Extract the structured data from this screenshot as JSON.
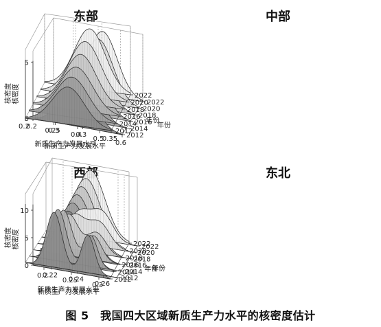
{
  "figure_caption": "图 5　我国四大区域新质生产力水平的核密度估计",
  "chart_data": [
    {
      "type": "kde-3d-surface",
      "title": "东部",
      "xlabel": "新质生产力发展水平",
      "ylabel": "年份",
      "zlabel": "核密度",
      "x_ticks": [
        "0.2",
        "0.3",
        "0.4",
        "0.5",
        "0.6"
      ],
      "xlim": [
        0.2,
        0.6
      ],
      "y_ticks": [
        "2012",
        "2014",
        "2016",
        "2018",
        "2020",
        "2022"
      ],
      "ylim": [
        2012,
        2022
      ],
      "z_ticks": [
        "0",
        "5"
      ],
      "zlim": [
        0,
        6
      ],
      "series": [
        {
          "year": 2012,
          "peaks": [
            {
              "mean": 0.4,
              "sd": 0.065,
              "height": 5.2
            }
          ]
        },
        {
          "year": 2014,
          "peaks": [
            {
              "mean": 0.4,
              "sd": 0.065,
              "height": 5.2
            }
          ]
        },
        {
          "year": 2016,
          "peaks": [
            {
              "mean": 0.41,
              "sd": 0.065,
              "height": 5.3
            }
          ]
        },
        {
          "year": 2018,
          "peaks": [
            {
              "mean": 0.41,
              "sd": 0.065,
              "height": 5.4
            }
          ]
        },
        {
          "year": 2020,
          "peaks": [
            {
              "mean": 0.42,
              "sd": 0.065,
              "height": 5.5
            }
          ]
        },
        {
          "year": 2022,
          "peaks": [
            {
              "mean": 0.42,
              "sd": 0.065,
              "height": 5.6
            }
          ]
        }
      ]
    },
    {
      "type": "kde-3d-surface",
      "title": "中部",
      "xlabel": "新质生产力发展水平",
      "ylabel": "年份",
      "zlabel": "核密度",
      "x_ticks": [
        "0.2",
        "0.25",
        "0.3",
        "0.35"
      ],
      "xlim": [
        0.2,
        0.35
      ],
      "y_ticks": [
        "2012",
        "2014",
        "2016",
        "2018",
        "2020",
        "2022"
      ],
      "ylim": [
        2012,
        2022
      ],
      "z_ticks": [],
      "zlim": [
        0,
        12
      ],
      "series": [
        {
          "year": 2012,
          "peaks": [
            {
              "mean": 0.275,
              "sd": 0.028,
              "height": 6.5
            }
          ]
        },
        {
          "year": 2014,
          "peaks": [
            {
              "mean": 0.275,
              "sd": 0.028,
              "height": 7.0
            }
          ]
        },
        {
          "year": 2016,
          "peaks": [
            {
              "mean": 0.276,
              "sd": 0.028,
              "height": 7.5
            }
          ]
        },
        {
          "year": 2018,
          "peaks": [
            {
              "mean": 0.277,
              "sd": 0.027,
              "height": 8.5
            }
          ]
        },
        {
          "year": 2020,
          "peaks": [
            {
              "mean": 0.278,
              "sd": 0.027,
              "height": 9.5
            }
          ]
        },
        {
          "year": 2022,
          "peaks": [
            {
              "mean": 0.279,
              "sd": 0.027,
              "height": 10.5
            }
          ]
        }
      ]
    },
    {
      "type": "kde-3d-surface",
      "title": "西部",
      "xlabel": "新质生产力发展水平",
      "ylabel": "年份",
      "zlabel": "核密度",
      "x_ticks": [
        "0.2",
        "0.25",
        "0.3"
      ],
      "xlim": [
        0.18,
        0.32
      ],
      "y_ticks": [
        "2012",
        "2014",
        "2016",
        "2018",
        "2020",
        "2022"
      ],
      "ylim": [
        2012,
        2022
      ],
      "z_ticks": [
        "0",
        "5",
        "10"
      ],
      "zlim": [
        0,
        13
      ],
      "series": [
        {
          "year": 2012,
          "peaks": [
            {
              "mean": 0.245,
              "sd": 0.026,
              "height": 11.0
            }
          ]
        },
        {
          "year": 2014,
          "peaks": [
            {
              "mean": 0.246,
              "sd": 0.026,
              "height": 11.2
            }
          ]
        },
        {
          "year": 2016,
          "peaks": [
            {
              "mean": 0.247,
              "sd": 0.026,
              "height": 11.4
            }
          ]
        },
        {
          "year": 2018,
          "peaks": [
            {
              "mean": 0.248,
              "sd": 0.026,
              "height": 11.6
            }
          ]
        },
        {
          "year": 2020,
          "peaks": [
            {
              "mean": 0.249,
              "sd": 0.026,
              "height": 11.8
            }
          ]
        },
        {
          "year": 2022,
          "peaks": [
            {
              "mean": 0.25,
              "sd": 0.026,
              "height": 12.0
            }
          ]
        }
      ]
    },
    {
      "type": "kde-3d-surface",
      "title": "东北",
      "xlabel": "新质生产力发展水平",
      "ylabel": "年份",
      "zlabel": "核密度",
      "x_ticks": [
        "0.22",
        "0.24",
        "0.26"
      ],
      "xlim": [
        0.2,
        0.27
      ],
      "y_ticks": [
        "2012",
        "2014",
        "2016",
        "2018",
        "2020",
        "2022"
      ],
      "ylim": [
        2012,
        2022
      ],
      "z_ticks": [],
      "zlim": [
        0,
        40
      ],
      "series": [
        {
          "year": 2012,
          "peaks": [
            {
              "mean": 0.222,
              "sd": 0.006,
              "height": 32
            },
            {
              "mean": 0.248,
              "sd": 0.005,
              "height": 22
            }
          ]
        },
        {
          "year": 2014,
          "peaks": [
            {
              "mean": 0.222,
              "sd": 0.006,
              "height": 30
            },
            {
              "mean": 0.247,
              "sd": 0.005,
              "height": 18
            }
          ]
        },
        {
          "year": 2016,
          "peaks": [
            {
              "mean": 0.223,
              "sd": 0.006,
              "height": 26
            },
            {
              "mean": 0.246,
              "sd": 0.006,
              "height": 14
            }
          ]
        },
        {
          "year": 2018,
          "peaks": [
            {
              "mean": 0.224,
              "sd": 0.007,
              "height": 20
            },
            {
              "mean": 0.245,
              "sd": 0.007,
              "height": 12
            }
          ]
        },
        {
          "year": 2020,
          "peaks": [
            {
              "mean": 0.225,
              "sd": 0.008,
              "height": 16
            },
            {
              "mean": 0.244,
              "sd": 0.008,
              "height": 14
            }
          ]
        },
        {
          "year": 2022,
          "peaks": [
            {
              "mean": 0.226,
              "sd": 0.008,
              "height": 14
            },
            {
              "mean": 0.243,
              "sd": 0.008,
              "height": 16
            }
          ]
        }
      ]
    }
  ]
}
